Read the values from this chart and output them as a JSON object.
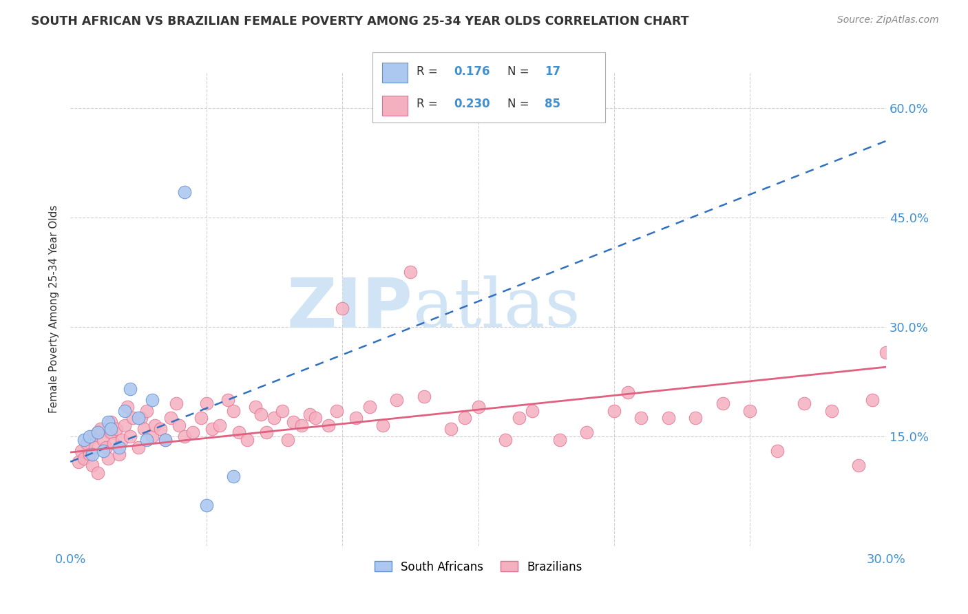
{
  "title": "SOUTH AFRICAN VS BRAZILIAN FEMALE POVERTY AMONG 25-34 YEAR OLDS CORRELATION CHART",
  "source": "Source: ZipAtlas.com",
  "ylabel": "Female Poverty Among 25-34 Year Olds",
  "xlim": [
    0.0,
    0.3
  ],
  "ylim": [
    0.0,
    0.65
  ],
  "xtick_positions": [
    0.0,
    0.05,
    0.1,
    0.15,
    0.2,
    0.25,
    0.3
  ],
  "right_yticks": [
    0.15,
    0.3,
    0.45,
    0.6
  ],
  "right_yticklabels": [
    "15.0%",
    "30.0%",
    "45.0%",
    "60.0%"
  ],
  "sa_fill_color": "#adc8f0",
  "sa_edge_color": "#6090d0",
  "br_fill_color": "#f5b0c0",
  "br_edge_color": "#e07090",
  "sa_line_color": "#3070c0",
  "br_line_color": "#e06080",
  "sa_line_x0": 0.0,
  "sa_line_y0": 0.115,
  "sa_line_x1": 0.3,
  "sa_line_y1": 0.555,
  "br_line_x0": 0.0,
  "br_line_y0": 0.128,
  "br_line_x1": 0.3,
  "br_line_y1": 0.245,
  "R_sa": "0.176",
  "N_sa": "17",
  "R_br": "0.230",
  "N_br": "85",
  "sa_x": [
    0.005,
    0.007,
    0.008,
    0.01,
    0.012,
    0.014,
    0.015,
    0.018,
    0.02,
    0.022,
    0.025,
    0.028,
    0.03,
    0.035,
    0.042,
    0.05,
    0.06
  ],
  "sa_y": [
    0.145,
    0.15,
    0.125,
    0.155,
    0.13,
    0.17,
    0.16,
    0.135,
    0.185,
    0.215,
    0.175,
    0.145,
    0.2,
    0.145,
    0.485,
    0.055,
    0.095
  ],
  "br_x": [
    0.003,
    0.004,
    0.005,
    0.006,
    0.007,
    0.008,
    0.008,
    0.009,
    0.01,
    0.01,
    0.011,
    0.012,
    0.013,
    0.014,
    0.015,
    0.015,
    0.016,
    0.017,
    0.018,
    0.019,
    0.02,
    0.021,
    0.022,
    0.023,
    0.025,
    0.026,
    0.027,
    0.028,
    0.03,
    0.031,
    0.033,
    0.035,
    0.037,
    0.039,
    0.04,
    0.042,
    0.045,
    0.048,
    0.05,
    0.052,
    0.055,
    0.058,
    0.06,
    0.062,
    0.065,
    0.068,
    0.07,
    0.072,
    0.075,
    0.078,
    0.08,
    0.082,
    0.085,
    0.088,
    0.09,
    0.095,
    0.098,
    0.1,
    0.105,
    0.11,
    0.115,
    0.12,
    0.125,
    0.13,
    0.14,
    0.145,
    0.15,
    0.16,
    0.165,
    0.17,
    0.18,
    0.19,
    0.2,
    0.205,
    0.21,
    0.22,
    0.23,
    0.24,
    0.25,
    0.26,
    0.27,
    0.28,
    0.29,
    0.295,
    0.3
  ],
  "br_y": [
    0.115,
    0.13,
    0.12,
    0.14,
    0.125,
    0.11,
    0.15,
    0.135,
    0.1,
    0.155,
    0.16,
    0.145,
    0.135,
    0.12,
    0.155,
    0.17,
    0.14,
    0.16,
    0.125,
    0.145,
    0.165,
    0.19,
    0.15,
    0.175,
    0.135,
    0.175,
    0.16,
    0.185,
    0.15,
    0.165,
    0.16,
    0.145,
    0.175,
    0.195,
    0.165,
    0.15,
    0.155,
    0.175,
    0.195,
    0.16,
    0.165,
    0.2,
    0.185,
    0.155,
    0.145,
    0.19,
    0.18,
    0.155,
    0.175,
    0.185,
    0.145,
    0.17,
    0.165,
    0.18,
    0.175,
    0.165,
    0.185,
    0.325,
    0.175,
    0.19,
    0.165,
    0.2,
    0.375,
    0.205,
    0.16,
    0.175,
    0.19,
    0.145,
    0.175,
    0.185,
    0.145,
    0.155,
    0.185,
    0.21,
    0.175,
    0.175,
    0.175,
    0.195,
    0.185,
    0.13,
    0.195,
    0.185,
    0.11,
    0.2,
    0.265
  ],
  "watermark_zip": "ZIP",
  "watermark_atlas": "atlas",
  "watermark_color": "#d0e4f5",
  "background_color": "#ffffff",
  "grid_color": "#d0d0d0",
  "title_color": "#333333",
  "source_color": "#888888",
  "axis_label_color": "#333333",
  "tick_color": "#4090d0",
  "legend_sa_color": "#adc8f0",
  "legend_br_color": "#f5b0c0",
  "legend_r_n_color": "#4090d0"
}
